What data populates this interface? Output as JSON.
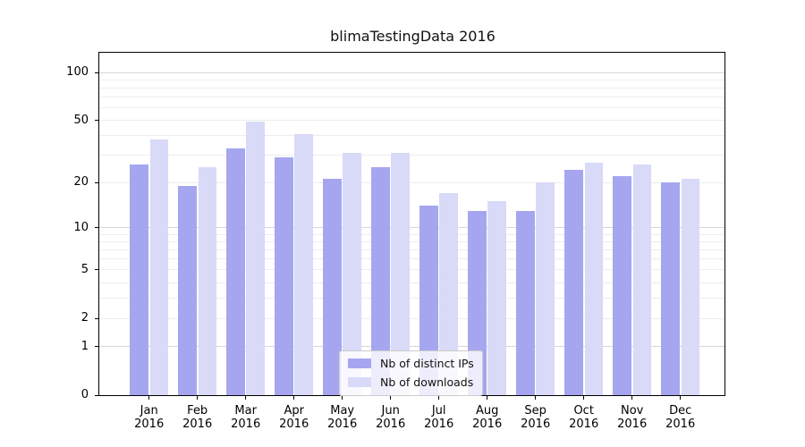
{
  "chart_data": {
    "type": "bar",
    "title": "blimaTestingData 2016",
    "xlabel": "",
    "ylabel": "",
    "yscale": "log1p",
    "ylim": [
      0,
      133
    ],
    "grid": true,
    "legend_position": "lower-center-inside",
    "yticks": [
      100,
      50,
      20,
      10,
      5,
      2,
      1,
      0
    ],
    "minor_gridlines": [
      2,
      3,
      4,
      5,
      6,
      7,
      8,
      9,
      20,
      30,
      40,
      50,
      60,
      70,
      80,
      90
    ],
    "major_gridlines": [
      1,
      10,
      100
    ],
    "categories": [
      "Jan 2016",
      "Feb 2016",
      "Mar 2016",
      "Apr 2016",
      "May 2016",
      "Jun 2016",
      "Jul 2016",
      "Aug 2016",
      "Sep 2016",
      "Oct 2016",
      "Nov 2016",
      "Dec 2016"
    ],
    "series": [
      {
        "name": "Nb of distinct IPs",
        "color": "#a6a6f0",
        "values": [
          26,
          19,
          33,
          29,
          21,
          25,
          14,
          13,
          13,
          24,
          22,
          20
        ]
      },
      {
        "name": "Nb of downloads",
        "color": "#d9d9f8",
        "values": [
          38,
          25,
          49,
          41,
          31,
          31,
          17,
          15,
          20,
          27,
          26,
          21
        ]
      }
    ]
  }
}
